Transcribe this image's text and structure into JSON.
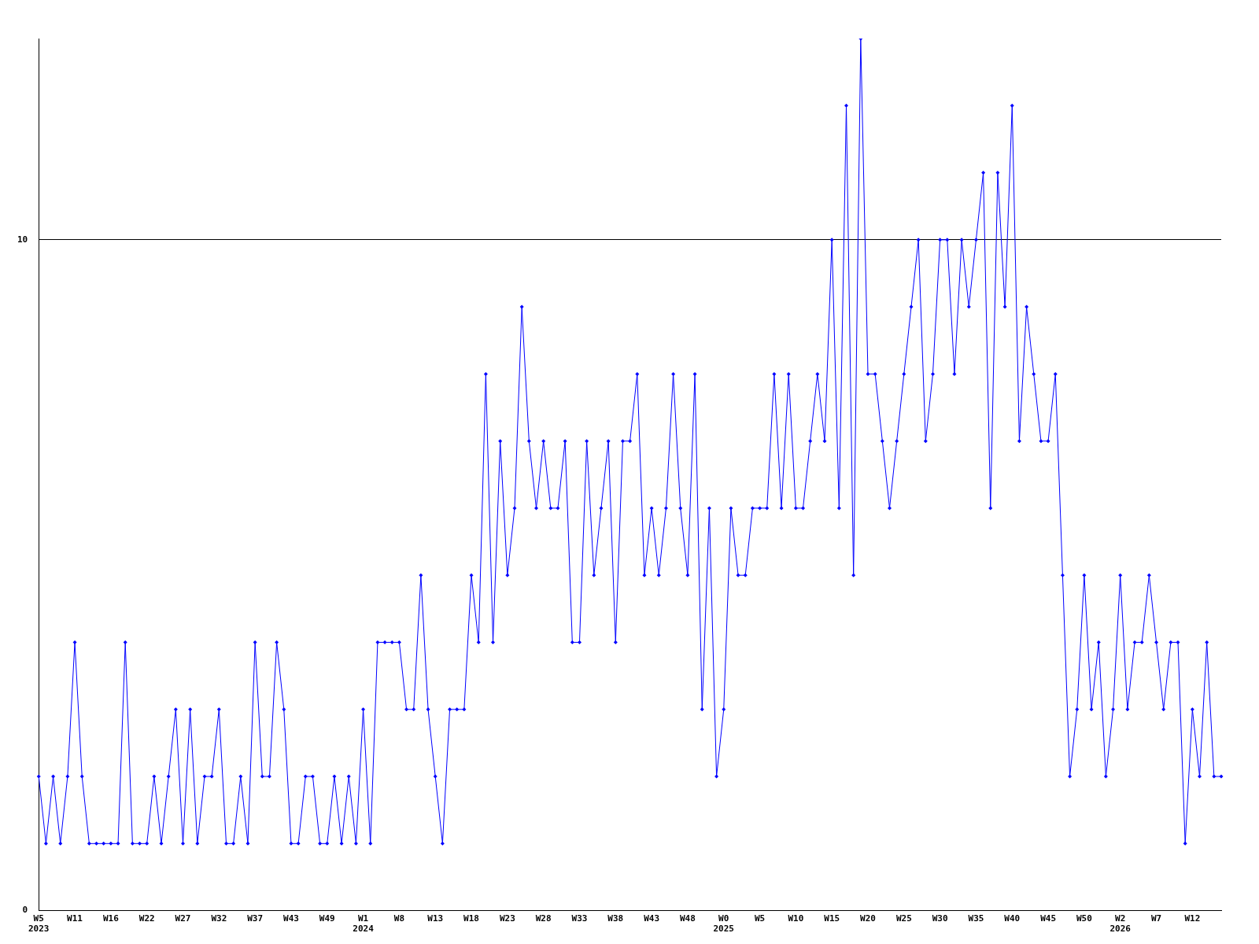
{
  "chart_data": {
    "type": "line",
    "categories": [
      "W5\n2023",
      null,
      null,
      null,
      null,
      "W11",
      null,
      null,
      null,
      null,
      "W16",
      null,
      null,
      null,
      null,
      "W22",
      null,
      null,
      null,
      null,
      "W27",
      null,
      null,
      null,
      null,
      "W32",
      null,
      null,
      null,
      null,
      "W37",
      null,
      null,
      null,
      null,
      "W43",
      null,
      null,
      null,
      null,
      "W49",
      null,
      null,
      null,
      null,
      "W1\n2024",
      null,
      null,
      null,
      null,
      "W8",
      null,
      null,
      null,
      null,
      "W13",
      null,
      null,
      null,
      null,
      "W18",
      null,
      null,
      null,
      null,
      "W23",
      null,
      null,
      null,
      null,
      "W28",
      null,
      null,
      null,
      null,
      "W33",
      null,
      null,
      null,
      null,
      "W38",
      null,
      null,
      null,
      null,
      "W43",
      null,
      null,
      null,
      null,
      "W48",
      null,
      null,
      null,
      null,
      "W0\n2025",
      null,
      null,
      null,
      null,
      "W5",
      null,
      null,
      null,
      null,
      "W10",
      null,
      null,
      null,
      null,
      "W15",
      null,
      null,
      null,
      null,
      "W20",
      null,
      null,
      null,
      null,
      "W25",
      null,
      null,
      null,
      null,
      "W30",
      null,
      null,
      null,
      null,
      "W35",
      null,
      null,
      null,
      null,
      "W40",
      null,
      null,
      null,
      null,
      "W45",
      null,
      null,
      null,
      null,
      "W50",
      null,
      null,
      null,
      null,
      "W2\n2026",
      null,
      null,
      null,
      null,
      "W7",
      null,
      null,
      null,
      null,
      "W12",
      null,
      null,
      null,
      null
    ],
    "series": [
      {
        "color": "#0000ff",
        "values": [
          2,
          1,
          2,
          1,
          2,
          4,
          2,
          1,
          1,
          1,
          1,
          1,
          4,
          1,
          1,
          1,
          2,
          1,
          2,
          3,
          1,
          3,
          1,
          2,
          2,
          3,
          1,
          1,
          2,
          1,
          4,
          2,
          2,
          4,
          3,
          1,
          1,
          2,
          2,
          1,
          1,
          2,
          1,
          2,
          1,
          3,
          1,
          4,
          4,
          4,
          4,
          3,
          3,
          5,
          3,
          2,
          1,
          3,
          3,
          3,
          5,
          4,
          8,
          4,
          7,
          5,
          6,
          9,
          7,
          6,
          7,
          6,
          6,
          7,
          4,
          4,
          7,
          5,
          6,
          7,
          4,
          7,
          7,
          8,
          5,
          6,
          5,
          6,
          8,
          6,
          5,
          8,
          3,
          6,
          2,
          3,
          6,
          5,
          5,
          6,
          6,
          6,
          8,
          6,
          8,
          6,
          6,
          7,
          8,
          7,
          10,
          6,
          12,
          5,
          13,
          8,
          8,
          7,
          6,
          7,
          8,
          9,
          10,
          7,
          8,
          10,
          10,
          8,
          10,
          9,
          10,
          11,
          6,
          11,
          9,
          12,
          7,
          9,
          8,
          7,
          7,
          8,
          5,
          2,
          3,
          5,
          3,
          4,
          2,
          3,
          5,
          3,
          4,
          4,
          5,
          4,
          3,
          4,
          4,
          1,
          3,
          2,
          4,
          2,
          2
        ]
      }
    ],
    "ylim": [
      0,
      13
    ],
    "yticks": [
      0,
      10
    ],
    "grid": "y",
    "legend": false,
    "marker": "diamond"
  }
}
